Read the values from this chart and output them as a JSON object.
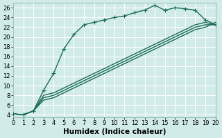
{
  "xlabel": "Humidex (Indice chaleur)",
  "ylabel": "",
  "background_color": "#d0ebe8",
  "grid_color": "#b8ddd8",
  "line_color": "#1a6b5a",
  "xlim": [
    0,
    20
  ],
  "ylim": [
    3.5,
    27
  ],
  "xticks": [
    0,
    1,
    2,
    3,
    4,
    5,
    6,
    7,
    8,
    9,
    10,
    11,
    12,
    13,
    14,
    15,
    16,
    17,
    18,
    19,
    20
  ],
  "yticks": [
    4,
    6,
    8,
    10,
    12,
    14,
    16,
    18,
    20,
    22,
    24,
    26
  ],
  "curve1_x": [
    0,
    1,
    2,
    3,
    4,
    5,
    6,
    7,
    8,
    9,
    10,
    11,
    12,
    13,
    14,
    15,
    16,
    17,
    18,
    19,
    20
  ],
  "curve1_y": [
    4.2,
    4.0,
    4.8,
    9.0,
    12.5,
    17.5,
    20.5,
    22.5,
    23.0,
    23.5,
    24.0,
    24.3,
    25.0,
    25.5,
    26.5,
    25.5,
    26.0,
    25.8,
    25.5,
    23.5,
    22.5
  ],
  "curve2_x": [
    0,
    1,
    2,
    3,
    4,
    5,
    6,
    7,
    8,
    9,
    10,
    11,
    12,
    13,
    14,
    15,
    16,
    17,
    18,
    19,
    20
  ],
  "curve2_y": [
    4.2,
    4.0,
    4.8,
    7.0,
    7.5,
    8.5,
    9.5,
    10.5,
    11.5,
    12.5,
    13.5,
    14.5,
    15.5,
    16.5,
    17.5,
    18.5,
    19.5,
    20.5,
    21.5,
    22.0,
    23.0
  ],
  "curve3_x": [
    0,
    1,
    2,
    3,
    4,
    5,
    6,
    7,
    8,
    9,
    10,
    11,
    12,
    13,
    14,
    15,
    16,
    17,
    18,
    19,
    20
  ],
  "curve3_y": [
    4.2,
    4.0,
    4.8,
    7.5,
    8.0,
    9.0,
    10.0,
    11.0,
    12.0,
    13.0,
    14.0,
    15.0,
    16.0,
    17.0,
    18.0,
    19.0,
    20.0,
    21.0,
    22.0,
    22.5,
    22.5
  ],
  "curve4_x": [
    0,
    1,
    2,
    3,
    4,
    5,
    6,
    7,
    8,
    9,
    10,
    11,
    12,
    13,
    14,
    15,
    16,
    17,
    18,
    19,
    20
  ],
  "curve4_y": [
    4.2,
    4.0,
    4.8,
    8.0,
    8.5,
    9.5,
    10.5,
    11.5,
    12.5,
    13.5,
    14.5,
    15.5,
    16.5,
    17.5,
    18.5,
    19.5,
    20.5,
    21.5,
    22.5,
    23.0,
    22.5
  ],
  "marker_size": 3.5,
  "line_width": 1.0,
  "tick_fontsize": 6,
  "xlabel_fontsize": 7.5
}
